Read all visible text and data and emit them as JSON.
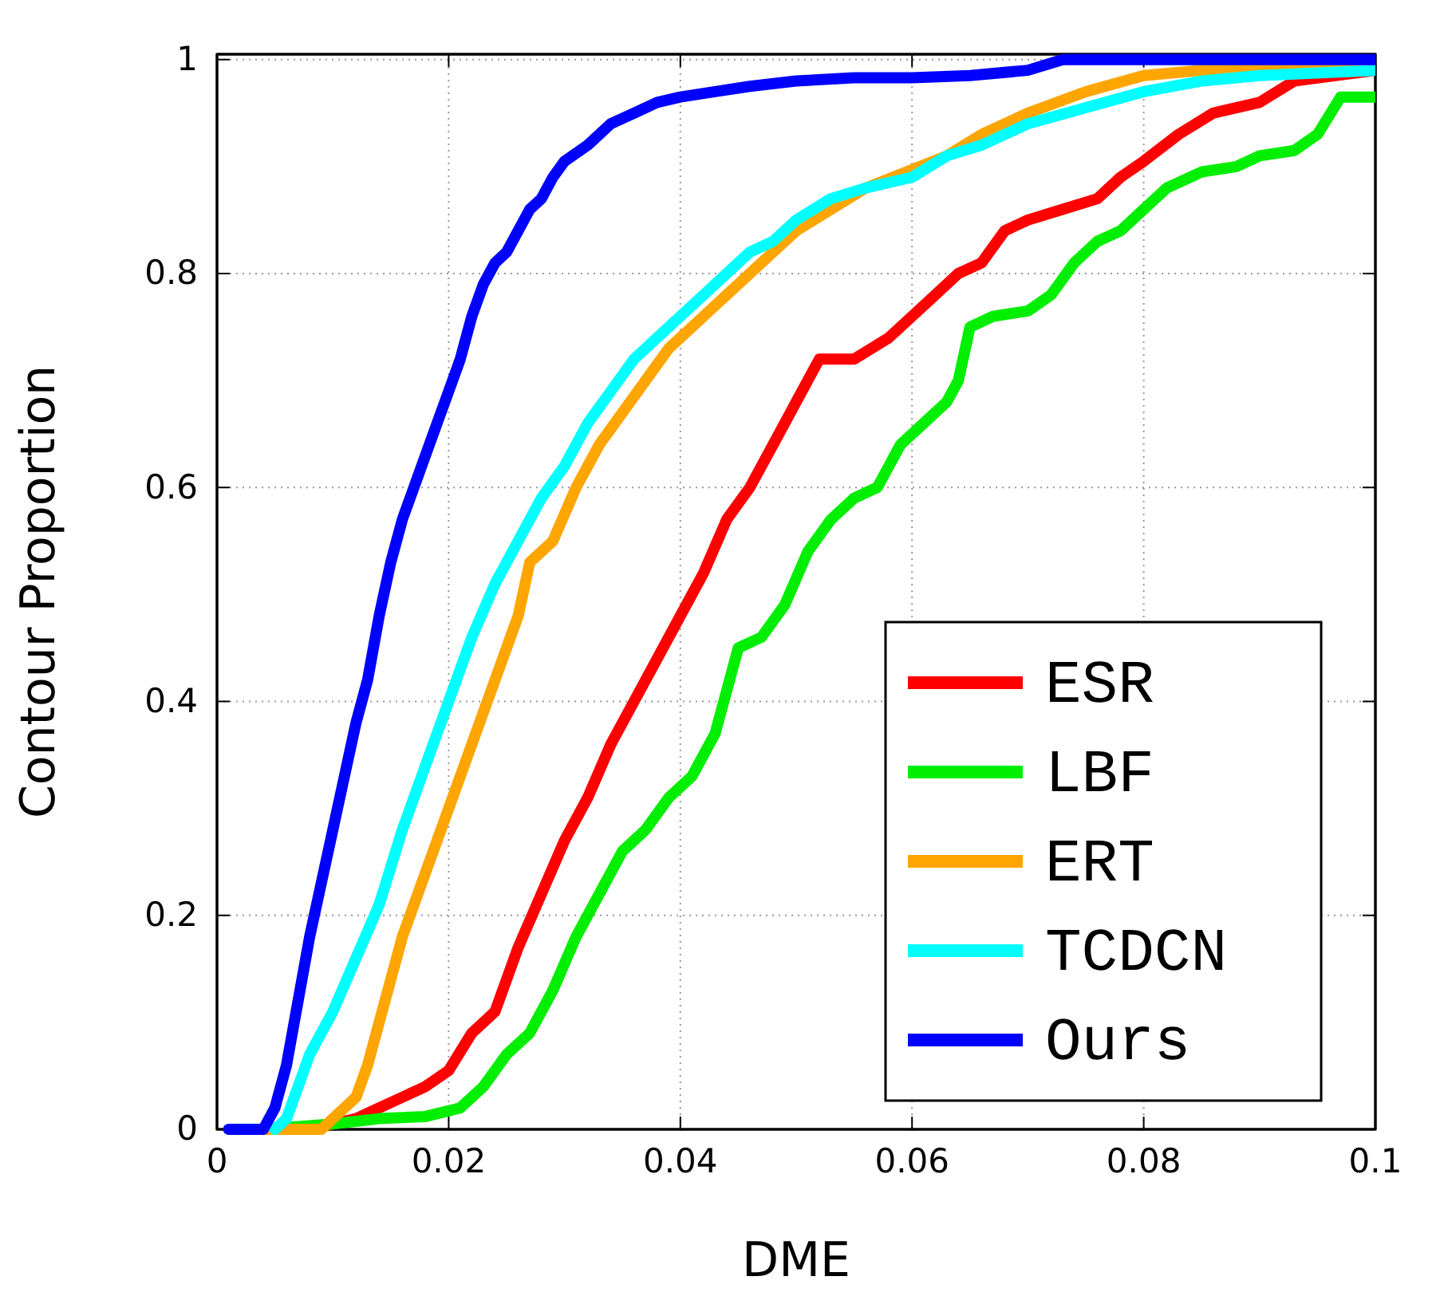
{
  "chart_data": {
    "type": "line",
    "xlabel": "DME",
    "ylabel": "Contour Proportion",
    "xlim": [
      0,
      0.1
    ],
    "ylim": [
      0,
      1.005
    ],
    "xticks": [
      0,
      0.02,
      0.04,
      0.06,
      0.08,
      0.1
    ],
    "yticks": [
      0,
      0.2,
      0.4,
      0.6,
      0.8,
      1
    ],
    "grid": true,
    "legend": "bottom right",
    "line_style": "solid",
    "marker": "none",
    "series": [
      {
        "name": "ESR",
        "color": "#ff0000",
        "x": [
          0.008,
          0.01,
          0.012,
          0.014,
          0.016,
          0.018,
          0.02,
          0.022,
          0.024,
          0.026,
          0.028,
          0.03,
          0.032,
          0.034,
          0.036,
          0.038,
          0.04,
          0.042,
          0.044,
          0.046,
          0.048,
          0.05,
          0.052,
          0.055,
          0.058,
          0.06,
          0.062,
          0.064,
          0.066,
          0.068,
          0.07,
          0.073,
          0.076,
          0.078,
          0.08,
          0.083,
          0.086,
          0.09,
          0.093,
          0.1
        ],
        "values": [
          0,
          0.005,
          0.01,
          0.02,
          0.03,
          0.04,
          0.055,
          0.09,
          0.11,
          0.17,
          0.22,
          0.27,
          0.31,
          0.36,
          0.4,
          0.44,
          0.48,
          0.52,
          0.57,
          0.6,
          0.64,
          0.68,
          0.72,
          0.72,
          0.74,
          0.76,
          0.78,
          0.8,
          0.81,
          0.84,
          0.85,
          0.86,
          0.87,
          0.89,
          0.905,
          0.93,
          0.95,
          0.96,
          0.98,
          0.99
        ]
      },
      {
        "name": "LBF",
        "color": "#00ee00",
        "x": [
          0.004,
          0.01,
          0.014,
          0.018,
          0.021,
          0.023,
          0.025,
          0.027,
          0.029,
          0.031,
          0.033,
          0.035,
          0.037,
          0.039,
          0.041,
          0.043,
          0.045,
          0.047,
          0.049,
          0.051,
          0.053,
          0.055,
          0.057,
          0.059,
          0.061,
          0.063,
          0.064,
          0.065,
          0.067,
          0.07,
          0.072,
          0.074,
          0.076,
          0.078,
          0.08,
          0.082,
          0.085,
          0.088,
          0.09,
          0.093,
          0.095,
          0.097,
          0.1
        ],
        "values": [
          0,
          0.005,
          0.01,
          0.012,
          0.02,
          0.04,
          0.07,
          0.09,
          0.13,
          0.18,
          0.22,
          0.26,
          0.28,
          0.31,
          0.33,
          0.37,
          0.45,
          0.46,
          0.49,
          0.54,
          0.57,
          0.59,
          0.6,
          0.64,
          0.66,
          0.68,
          0.7,
          0.75,
          0.76,
          0.765,
          0.78,
          0.81,
          0.83,
          0.84,
          0.86,
          0.88,
          0.895,
          0.9,
          0.91,
          0.915,
          0.93,
          0.965,
          0.965
        ]
      },
      {
        "name": "ERT",
        "color": "#ffa500",
        "x": [
          0.003,
          0.009,
          0.01,
          0.012,
          0.013,
          0.014,
          0.015,
          0.016,
          0.018,
          0.02,
          0.022,
          0.024,
          0.026,
          0.027,
          0.029,
          0.031,
          0.033,
          0.035,
          0.037,
          0.039,
          0.041,
          0.043,
          0.045,
          0.048,
          0.05,
          0.053,
          0.056,
          0.063,
          0.066,
          0.07,
          0.075,
          0.08,
          0.085,
          0.1
        ],
        "values": [
          0,
          0,
          0.01,
          0.03,
          0.06,
          0.1,
          0.14,
          0.18,
          0.24,
          0.3,
          0.36,
          0.42,
          0.48,
          0.53,
          0.55,
          0.6,
          0.64,
          0.67,
          0.7,
          0.73,
          0.75,
          0.77,
          0.79,
          0.82,
          0.84,
          0.86,
          0.88,
          0.91,
          0.93,
          0.95,
          0.97,
          0.985,
          0.99,
          0.99
        ]
      },
      {
        "name": "TCDCN",
        "color": "#00ffff",
        "x": [
          0.005,
          0.006,
          0.007,
          0.008,
          0.01,
          0.012,
          0.014,
          0.016,
          0.018,
          0.02,
          0.022,
          0.024,
          0.026,
          0.028,
          0.03,
          0.032,
          0.034,
          0.036,
          0.038,
          0.04,
          0.042,
          0.044,
          0.046,
          0.048,
          0.05,
          0.053,
          0.056,
          0.06,
          0.063,
          0.066,
          0.07,
          0.075,
          0.08,
          0.085,
          0.09,
          0.1
        ],
        "values": [
          0,
          0.01,
          0.04,
          0.07,
          0.11,
          0.16,
          0.21,
          0.28,
          0.34,
          0.4,
          0.46,
          0.51,
          0.55,
          0.59,
          0.62,
          0.66,
          0.69,
          0.72,
          0.74,
          0.76,
          0.78,
          0.8,
          0.82,
          0.83,
          0.85,
          0.87,
          0.88,
          0.89,
          0.91,
          0.92,
          0.94,
          0.955,
          0.97,
          0.98,
          0.985,
          0.99
        ]
      },
      {
        "name": "Ours",
        "color": "#0000ff",
        "x": [
          0.001,
          0.004,
          0.005,
          0.006,
          0.007,
          0.008,
          0.009,
          0.01,
          0.011,
          0.012,
          0.013,
          0.014,
          0.015,
          0.016,
          0.017,
          0.018,
          0.019,
          0.02,
          0.021,
          0.022,
          0.023,
          0.024,
          0.025,
          0.026,
          0.027,
          0.028,
          0.029,
          0.03,
          0.032,
          0.034,
          0.036,
          0.038,
          0.04,
          0.043,
          0.046,
          0.05,
          0.055,
          0.06,
          0.065,
          0.07,
          0.073,
          0.1
        ],
        "values": [
          0,
          0,
          0.02,
          0.06,
          0.12,
          0.18,
          0.23,
          0.28,
          0.33,
          0.38,
          0.42,
          0.48,
          0.53,
          0.57,
          0.6,
          0.63,
          0.66,
          0.69,
          0.72,
          0.76,
          0.79,
          0.81,
          0.82,
          0.84,
          0.86,
          0.87,
          0.89,
          0.905,
          0.92,
          0.94,
          0.95,
          0.96,
          0.965,
          0.97,
          0.975,
          0.98,
          0.983,
          0.983,
          0.985,
          0.99,
          1.0,
          1.0
        ]
      }
    ]
  }
}
